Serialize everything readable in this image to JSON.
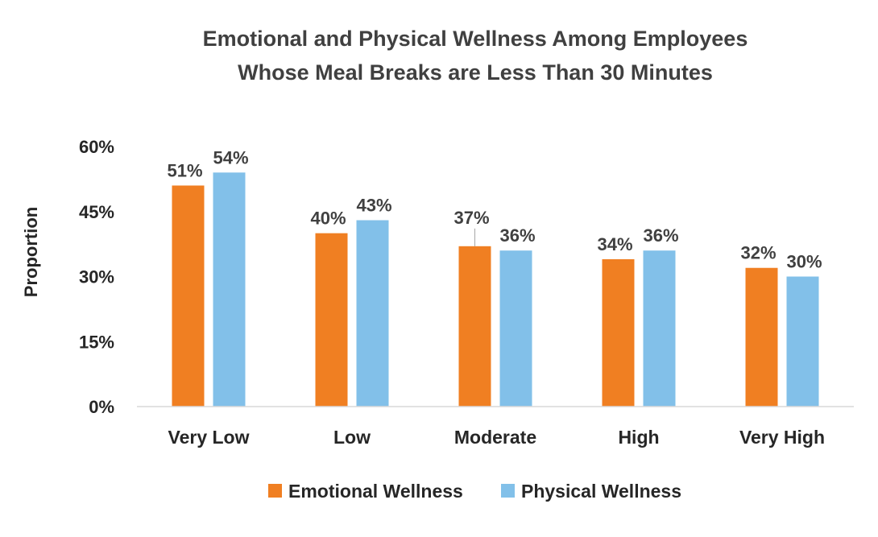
{
  "chart_data": {
    "type": "bar",
    "title_lines": [
      "Emotional and Physical Wellness Among Employees",
      "Whose Meal Breaks are Less Than 30 Minutes"
    ],
    "xlabel": "",
    "ylabel": "Proportion",
    "ylim": [
      0,
      60
    ],
    "yticks": [
      0,
      15,
      30,
      45,
      60
    ],
    "ytick_labels": [
      "0%",
      "15%",
      "30%",
      "45%",
      "60%"
    ],
    "categories": [
      "Very Low",
      "Low",
      "Moderate",
      "High",
      "Very High"
    ],
    "series": [
      {
        "name": "Emotional Wellness",
        "color": "#F07F22",
        "values": [
          51,
          40,
          37,
          34,
          32
        ],
        "labels": [
          "51%",
          "40%",
          "37%",
          "34%",
          "32%"
        ]
      },
      {
        "name": "Physical Wellness",
        "color": "#82C0E9",
        "values": [
          54,
          43,
          36,
          36,
          30
        ],
        "labels": [
          "54%",
          "43%",
          "36%",
          "36%",
          "30%"
        ]
      }
    ],
    "grid": false,
    "legend_position": "bottom"
  }
}
